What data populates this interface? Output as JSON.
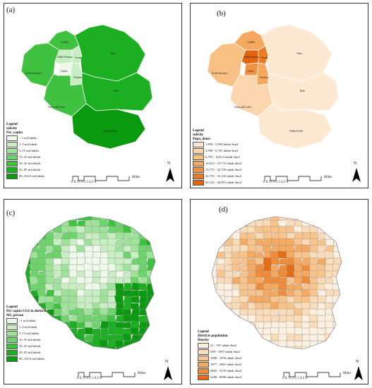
{
  "panels": [
    {
      "id": "a",
      "label": "(a)",
      "legend": {
        "title_lines": [
          "Legend",
          "subcity",
          "Per_capita"
        ],
        "items": [
          {
            "label": "< 1 m2/inhab.",
            "color": "#eef9ea"
          },
          {
            "label": "1–5 m2/inhab.",
            "color": "#c8efc2"
          },
          {
            "label": "5–15 m2/inhab.",
            "color": "#9fe29a"
          },
          {
            "label": "15–35 m2/inhab.",
            "color": "#6cd46a"
          },
          {
            "label": "35–45 m2/inhab.",
            "color": "#3fc23f"
          },
          {
            "label": "45–85 m2/inhab.",
            "color": "#1caf22"
          },
          {
            "label": "85–102.6 m2/inhab.",
            "color": "#0a9a0f"
          }
        ]
      },
      "subcities": [
        "Gulelle",
        "Addis Ketema",
        "Arada",
        "Lideta",
        "Cherkos",
        "Yeka",
        "Kolfe Keranyo",
        "Bole",
        "Nefas silk Lafto",
        "Akaki Kaliti"
      ]
    },
    {
      "id": "b",
      "label": "(b)",
      "legend": {
        "title_lines": [
          "Legend",
          "subcity",
          "Popu_densi"
        ],
        "items": [
          {
            "label": "1,859 - 3,958 inhab./km2",
            "color": "#fde9d2"
          },
          {
            "label": "3,958 - 6,791 inhab./km2",
            "color": "#fbd6ac"
          },
          {
            "label": "6,791 - 10,613 inhab./km2",
            "color": "#f9c084"
          },
          {
            "label": "10,613 - 15,772 inhab./km2",
            "color": "#f6a95e"
          },
          {
            "label": "15,772 - 22,735 inhab./km2",
            "color": "#f39140"
          },
          {
            "label": "22,735 - 32,132 inhab./km2",
            "color": "#ee7a24"
          },
          {
            "label": "32,132 - 44,815 inhab./km2",
            "color": "#e5640f"
          }
        ]
      },
      "subcities": [
        "Gulelle",
        "Addis Ketema",
        "Arada",
        "Lideta",
        "Cherkos",
        "Yeka",
        "Kolfe Keranyo",
        "Bole",
        "Nefas silk Lafto",
        "Akaki Kaliti"
      ]
    },
    {
      "id": "c",
      "label": "(c)",
      "legend": {
        "title_lines": [
          "Legend",
          "Per capita UGS in districts",
          "M2_person"
        ],
        "items": [
          {
            "label": "<1 m2/inhab.",
            "color": "#eef9ea"
          },
          {
            "label": "1–5 m2/inhab.",
            "color": "#c8efc2"
          },
          {
            "label": "5–15 m2/inhab.",
            "color": "#9fe29a"
          },
          {
            "label": "15–35 m2/inhab.",
            "color": "#6cd46a"
          },
          {
            "label": "35–45 m2/inhab.",
            "color": "#3fc23f"
          },
          {
            "label": "45–85 m2/inhab.",
            "color": "#1caf22"
          },
          {
            "label": "85–102.6  m2/inhab.",
            "color": "#0a9a0f"
          }
        ]
      }
    },
    {
      "id": "d",
      "label": "(d)",
      "legend": {
        "title_lines": [
          "Legend",
          "Districts population",
          "Density"
        ],
        "items": [
          {
            "label": "21 - 507 inhab./km2",
            "color": "#fdf0e0"
          },
          {
            "label": "508 - 1097 inhab./km2",
            "color": "#fbdcb8"
          },
          {
            "label": "1098 - 1876 inhab./km2",
            "color": "#f8c48c"
          },
          {
            "label": "1877 - 2861 inhab./km2",
            "color": "#f5aa62"
          },
          {
            "label": "2862 - 5279 inhab./km2",
            "color": "#f08b38"
          },
          {
            "label": "5280 - 8990 inhab./km2",
            "color": "#e86c14"
          }
        ]
      }
    }
  ],
  "scalebar": {
    "ticks": "0  0.75 1.5      3       4.5      6",
    "unit": "Miles"
  },
  "north_label": "N"
}
